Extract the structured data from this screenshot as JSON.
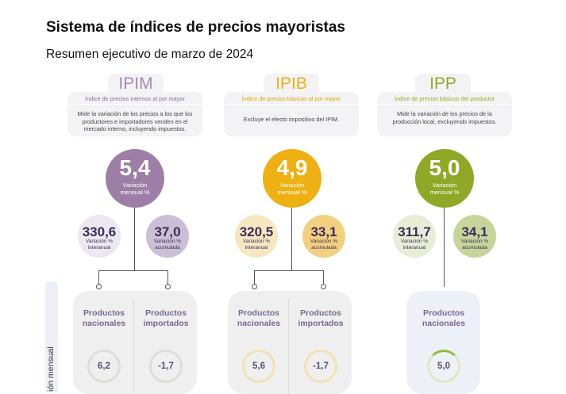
{
  "header": {
    "title": "Sistema de índices de precios mayoristas",
    "subtitle": "Resumen ejecutivo de marzo de 2024"
  },
  "side_label": "ión mensual",
  "indices": [
    {
      "code": "IPIM",
      "name": "Índice de precios internos al por mayor",
      "description": "Mide la variación de los precios a los que los productores e importadores venden en el mercado interno, incluyendo impuestos.",
      "monthly": "5,4",
      "monthly_label": "Variación mensual %",
      "yoy": "330,6",
      "yoy_label": "Variación % interanual",
      "ytd": "37,0",
      "ytd_label": "Variación % acumulada",
      "color": "#9e7ea6",
      "breakdown": [
        {
          "label": "Productos nacionales",
          "value": "6,2"
        },
        {
          "label": "Productos importados",
          "value": "-1,7"
        }
      ]
    },
    {
      "code": "IPIB",
      "name": "Índice de precios básicos al por mayor",
      "description": "Excluye el efecto impositivo del IPIM.",
      "monthly": "4,9",
      "monthly_label": "Variación mensual %",
      "yoy": "320,5",
      "yoy_label": "Variación % interanual",
      "ytd": "33,1",
      "ytd_label": "Variación % acumulada",
      "color": "#eeb012",
      "breakdown": [
        {
          "label": "Productos nacionales",
          "value": "5,6"
        },
        {
          "label": "Productos importados",
          "value": "-1,7"
        }
      ]
    },
    {
      "code": "IPP",
      "name": "Índice de precios básicos del productor",
      "description": "Mide la variación de los precios de la producción local, excluyendo impuestos.",
      "monthly": "5,0",
      "monthly_label": "Variación mensual %",
      "yoy": "311,7",
      "yoy_label": "Variación % interanual",
      "ytd": "34,1",
      "ytd_label": "Variación % acumulada",
      "color": "#8fa826",
      "breakdown": [
        {
          "label": "Productos nacionales",
          "value": "5,0"
        }
      ]
    }
  ]
}
